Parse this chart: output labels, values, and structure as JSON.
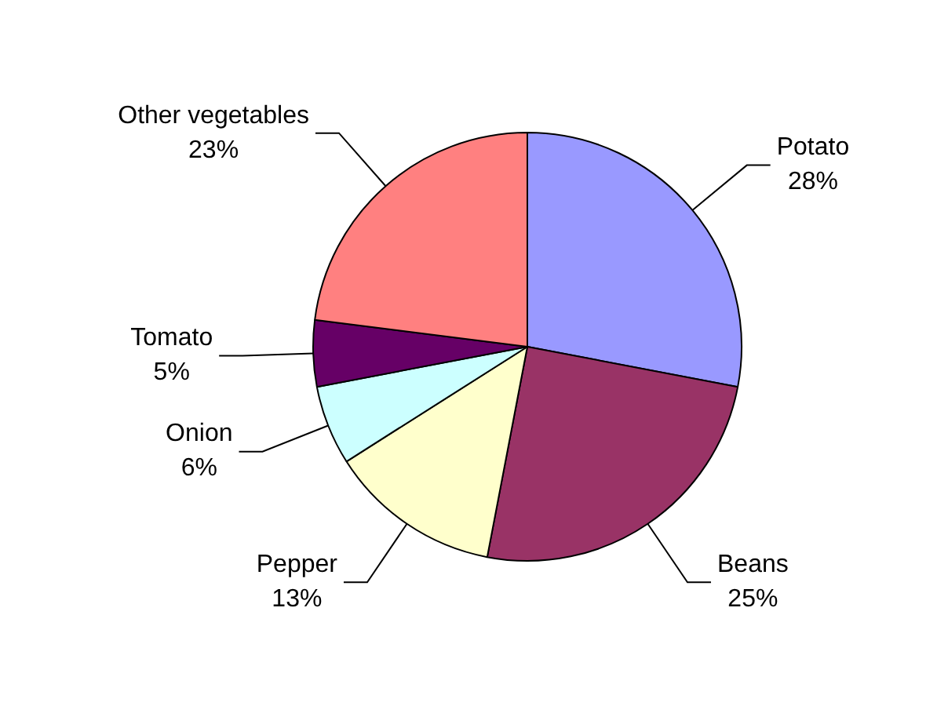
{
  "chart_data": {
    "type": "pie",
    "categories": [
      "Potato",
      "Beans",
      "Pepper",
      "Onion",
      "Tomato",
      "Other vegetables"
    ],
    "values": [
      28,
      25,
      13,
      6,
      5,
      23
    ],
    "value_labels": [
      "28%",
      "25%",
      "13%",
      "6%",
      "5%",
      "23%"
    ],
    "colors": [
      "#9999ff",
      "#993366",
      "#ffffcc",
      "#ccffff",
      "#660066",
      "#ff8080"
    ],
    "legend": false
  }
}
